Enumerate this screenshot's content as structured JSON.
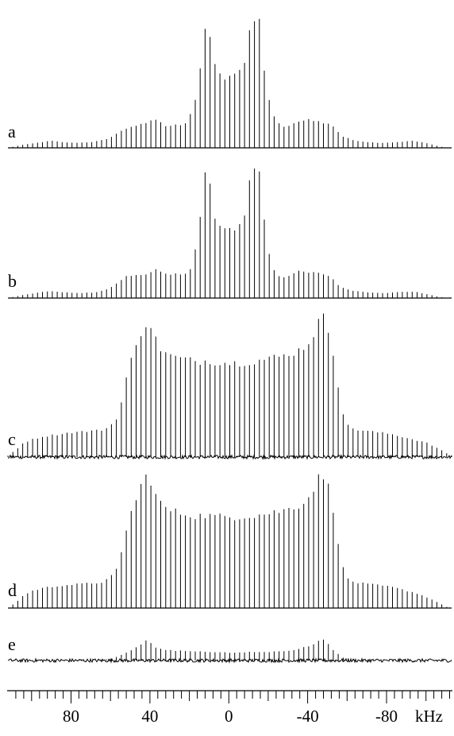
{
  "chart_data": {
    "type": "line",
    "description_free": true,
    "x_axis": {
      "unit": "kHz",
      "xlim": [
        112,
        -113
      ],
      "reversed": true,
      "major_ticks": [
        80,
        40,
        0,
        -40,
        -80
      ],
      "major_tick_labels": [
        "80",
        "40",
        "0",
        "-40",
        "-80"
      ],
      "minor_tick_step": 4,
      "grid": false
    },
    "spinning_sideband_spacing_khz": 2.5,
    "panels": [
      {
        "label": "a",
        "profile_points": [
          [
            112,
            0
          ],
          [
            105,
            0.02
          ],
          [
            95,
            0.04
          ],
          [
            90,
            0.05
          ],
          [
            85,
            0.04
          ],
          [
            78,
            0.035
          ],
          [
            70,
            0.04
          ],
          [
            62,
            0.06
          ],
          [
            57,
            0.1
          ],
          [
            53,
            0.13
          ],
          [
            50,
            0.15
          ],
          [
            46,
            0.16
          ],
          [
            42,
            0.17
          ],
          [
            38,
            0.21
          ],
          [
            35,
            0.18
          ],
          [
            31,
            0.15
          ],
          [
            28,
            0.17
          ],
          [
            24,
            0.16
          ],
          [
            21,
            0.18
          ],
          [
            18,
            0.28
          ],
          [
            16,
            0.4
          ],
          [
            14,
            0.6
          ],
          [
            12,
            0.86
          ],
          [
            10,
            0.85
          ],
          [
            8,
            0.6
          ],
          [
            6,
            0.55
          ],
          [
            4,
            0.5
          ],
          [
            2,
            0.49
          ],
          [
            0,
            0.51
          ],
          [
            -2,
            0.5
          ],
          [
            -4,
            0.52
          ],
          [
            -6,
            0.55
          ],
          [
            -8,
            0.62
          ],
          [
            -10,
            0.8
          ],
          [
            -12,
            0.9
          ],
          [
            -14,
            0.95
          ],
          [
            -16,
            0.88
          ],
          [
            -18,
            0.55
          ],
          [
            -20,
            0.36
          ],
          [
            -22,
            0.25
          ],
          [
            -25,
            0.18
          ],
          [
            -28,
            0.15
          ],
          [
            -32,
            0.16
          ],
          [
            -36,
            0.19
          ],
          [
            -40,
            0.21
          ],
          [
            -44,
            0.19
          ],
          [
            -48,
            0.18
          ],
          [
            -52,
            0.17
          ],
          [
            -55,
            0.12
          ],
          [
            -58,
            0.08
          ],
          [
            -64,
            0.05
          ],
          [
            -70,
            0.04
          ],
          [
            -78,
            0.035
          ],
          [
            -86,
            0.04
          ],
          [
            -92,
            0.05
          ],
          [
            -98,
            0.04
          ],
          [
            -104,
            0.02
          ],
          [
            -110,
            0
          ],
          [
            -113,
            0
          ]
        ],
        "noise": 0
      },
      {
        "label": "b",
        "profile_points": [
          [
            112,
            0
          ],
          [
            105,
            0.02
          ],
          [
            96,
            0.04
          ],
          [
            90,
            0.05
          ],
          [
            84,
            0.04
          ],
          [
            76,
            0.035
          ],
          [
            68,
            0.04
          ],
          [
            62,
            0.06
          ],
          [
            57,
            0.1
          ],
          [
            53,
            0.15
          ],
          [
            49,
            0.16
          ],
          [
            45,
            0.17
          ],
          [
            41,
            0.17
          ],
          [
            37,
            0.2
          ],
          [
            34,
            0.18
          ],
          [
            31,
            0.16
          ],
          [
            28,
            0.17
          ],
          [
            24,
            0.17
          ],
          [
            20,
            0.19
          ],
          [
            18,
            0.27
          ],
          [
            16,
            0.42
          ],
          [
            14,
            0.62
          ],
          [
            12,
            0.88
          ],
          [
            10,
            0.87
          ],
          [
            8,
            0.6
          ],
          [
            6,
            0.53
          ],
          [
            4,
            0.5
          ],
          [
            2,
            0.48
          ],
          [
            0,
            0.49
          ],
          [
            -2,
            0.49
          ],
          [
            -4,
            0.5
          ],
          [
            -6,
            0.53
          ],
          [
            -8,
            0.6
          ],
          [
            -10,
            0.8
          ],
          [
            -12,
            0.9
          ],
          [
            -14,
            0.95
          ],
          [
            -16,
            0.9
          ],
          [
            -18,
            0.55
          ],
          [
            -20,
            0.35
          ],
          [
            -22,
            0.22
          ],
          [
            -25,
            0.16
          ],
          [
            -28,
            0.15
          ],
          [
            -32,
            0.17
          ],
          [
            -36,
            0.19
          ],
          [
            -40,
            0.18
          ],
          [
            -44,
            0.18
          ],
          [
            -48,
            0.17
          ],
          [
            -52,
            0.15
          ],
          [
            -55,
            0.1
          ],
          [
            -58,
            0.07
          ],
          [
            -64,
            0.05
          ],
          [
            -72,
            0.04
          ],
          [
            -80,
            0.035
          ],
          [
            -88,
            0.045
          ],
          [
            -94,
            0.045
          ],
          [
            -100,
            0.03
          ],
          [
            -106,
            0.01
          ],
          [
            -110,
            0
          ],
          [
            -113,
            0
          ]
        ],
        "noise": 0
      },
      {
        "label": "c",
        "profile_points": [
          [
            112,
            0.01
          ],
          [
            108,
            0.05
          ],
          [
            104,
            0.1
          ],
          [
            100,
            0.12
          ],
          [
            95,
            0.14
          ],
          [
            90,
            0.15
          ],
          [
            85,
            0.16
          ],
          [
            80,
            0.17
          ],
          [
            75,
            0.175
          ],
          [
            70,
            0.18
          ],
          [
            65,
            0.185
          ],
          [
            62,
            0.2
          ],
          [
            58,
            0.24
          ],
          [
            56,
            0.3
          ],
          [
            54,
            0.4
          ],
          [
            52,
            0.55
          ],
          [
            50,
            0.65
          ],
          [
            48,
            0.72
          ],
          [
            46,
            0.8
          ],
          [
            44,
            0.88
          ],
          [
            42,
            0.93
          ],
          [
            40,
            0.92
          ],
          [
            38,
            0.85
          ],
          [
            36,
            0.77
          ],
          [
            33,
            0.73
          ],
          [
            30,
            0.7
          ],
          [
            27,
            0.69
          ],
          [
            24,
            0.68
          ],
          [
            20,
            0.67
          ],
          [
            16,
            0.66
          ],
          [
            12,
            0.665
          ],
          [
            8,
            0.66
          ],
          [
            4,
            0.655
          ],
          [
            0,
            0.65
          ],
          [
            -4,
            0.65
          ],
          [
            -8,
            0.655
          ],
          [
            -12,
            0.66
          ],
          [
            -16,
            0.67
          ],
          [
            -20,
            0.68
          ],
          [
            -24,
            0.69
          ],
          [
            -28,
            0.7
          ],
          [
            -32,
            0.72
          ],
          [
            -36,
            0.74
          ],
          [
            -40,
            0.78
          ],
          [
            -42,
            0.83
          ],
          [
            -44,
            0.88
          ],
          [
            -46,
            0.95
          ],
          [
            -48,
            0.96
          ],
          [
            -50,
            0.9
          ],
          [
            -52,
            0.8
          ],
          [
            -54,
            0.65
          ],
          [
            -56,
            0.45
          ],
          [
            -58,
            0.3
          ],
          [
            -60,
            0.22
          ],
          [
            -64,
            0.19
          ],
          [
            -70,
            0.18
          ],
          [
            -76,
            0.17
          ],
          [
            -82,
            0.16
          ],
          [
            -88,
            0.14
          ],
          [
            -94,
            0.12
          ],
          [
            -100,
            0.1
          ],
          [
            -106,
            0.06
          ],
          [
            -110,
            0.03
          ],
          [
            -113,
            0.01
          ]
        ],
        "noise": 0.012
      },
      {
        "label": "d",
        "profile_points": [
          [
            112,
            0
          ],
          [
            108,
            0.04
          ],
          [
            104,
            0.09
          ],
          [
            100,
            0.12
          ],
          [
            95,
            0.14
          ],
          [
            90,
            0.15
          ],
          [
            85,
            0.16
          ],
          [
            80,
            0.165
          ],
          [
            75,
            0.17
          ],
          [
            70,
            0.175
          ],
          [
            65,
            0.18
          ],
          [
            62,
            0.2
          ],
          [
            58,
            0.24
          ],
          [
            56,
            0.3
          ],
          [
            54,
            0.42
          ],
          [
            52,
            0.56
          ],
          [
            50,
            0.66
          ],
          [
            48,
            0.73
          ],
          [
            46,
            0.8
          ],
          [
            44,
            0.88
          ],
          [
            42,
            0.93
          ],
          [
            40,
            0.92
          ],
          [
            38,
            0.84
          ],
          [
            36,
            0.76
          ],
          [
            33,
            0.72
          ],
          [
            30,
            0.69
          ],
          [
            27,
            0.68
          ],
          [
            24,
            0.67
          ],
          [
            20,
            0.66
          ],
          [
            16,
            0.65
          ],
          [
            12,
            0.655
          ],
          [
            8,
            0.65
          ],
          [
            4,
            0.645
          ],
          [
            0,
            0.645
          ],
          [
            -4,
            0.645
          ],
          [
            -8,
            0.65
          ],
          [
            -12,
            0.655
          ],
          [
            -16,
            0.66
          ],
          [
            -20,
            0.67
          ],
          [
            -24,
            0.68
          ],
          [
            -28,
            0.69
          ],
          [
            -32,
            0.71
          ],
          [
            -36,
            0.73
          ],
          [
            -40,
            0.77
          ],
          [
            -42,
            0.82
          ],
          [
            -44,
            0.88
          ],
          [
            -46,
            0.93
          ],
          [
            -48,
            0.93
          ],
          [
            -50,
            0.88
          ],
          [
            -52,
            0.78
          ],
          [
            -54,
            0.62
          ],
          [
            -56,
            0.42
          ],
          [
            -58,
            0.28
          ],
          [
            -60,
            0.21
          ],
          [
            -64,
            0.18
          ],
          [
            -70,
            0.17
          ],
          [
            -76,
            0.16
          ],
          [
            -82,
            0.15
          ],
          [
            -88,
            0.13
          ],
          [
            -94,
            0.11
          ],
          [
            -100,
            0.08
          ],
          [
            -106,
            0.04
          ],
          [
            -110,
            0.01
          ],
          [
            -113,
            0
          ]
        ],
        "noise": 0
      },
      {
        "label": "e",
        "profile_points": [
          [
            112,
            0
          ],
          [
            100,
            0
          ],
          [
            85,
            0
          ],
          [
            70,
            0
          ],
          [
            60,
            0.01
          ],
          [
            56,
            0.03
          ],
          [
            53,
            0.05
          ],
          [
            50,
            0.07
          ],
          [
            47,
            0.09
          ],
          [
            44,
            0.12
          ],
          [
            42,
            0.14
          ],
          [
            40,
            0.13
          ],
          [
            38,
            0.1
          ],
          [
            36,
            0.085
          ],
          [
            32,
            0.075
          ],
          [
            28,
            0.07
          ],
          [
            24,
            0.07
          ],
          [
            20,
            0.065
          ],
          [
            15,
            0.065
          ],
          [
            10,
            0.06
          ],
          [
            5,
            0.06
          ],
          [
            0,
            0.055
          ],
          [
            -5,
            0.055
          ],
          [
            -10,
            0.06
          ],
          [
            -15,
            0.06
          ],
          [
            -20,
            0.06
          ],
          [
            -25,
            0.065
          ],
          [
            -30,
            0.07
          ],
          [
            -35,
            0.08
          ],
          [
            -40,
            0.1
          ],
          [
            -44,
            0.12
          ],
          [
            -46,
            0.14
          ],
          [
            -48,
            0.15
          ],
          [
            -50,
            0.13
          ],
          [
            -52,
            0.09
          ],
          [
            -55,
            0.05
          ],
          [
            -58,
            0.02
          ],
          [
            -62,
            0.01
          ],
          [
            -70,
            0
          ],
          [
            -90,
            0
          ],
          [
            -113,
            0
          ]
        ],
        "noise": 0.012
      }
    ]
  }
}
